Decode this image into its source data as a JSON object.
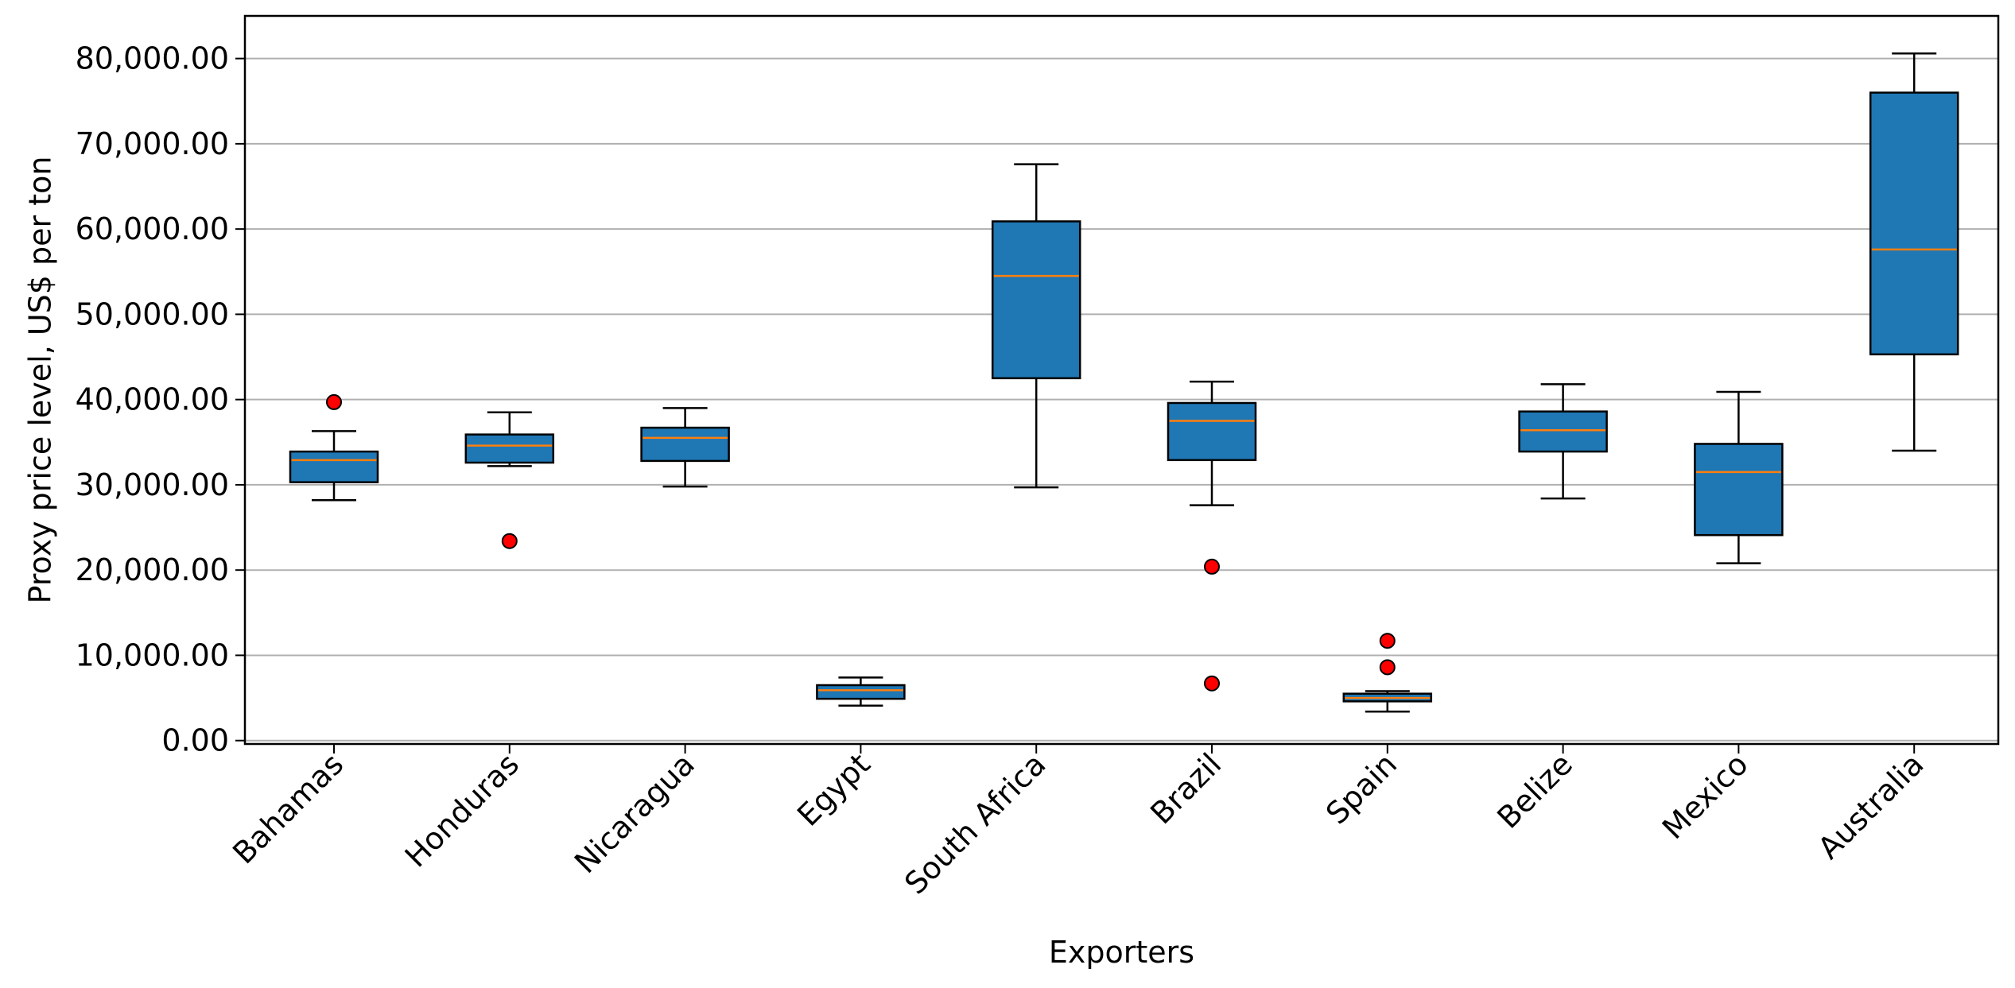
{
  "chart_data": {
    "type": "box",
    "title": "",
    "xlabel": "Exporters",
    "ylabel": "Proxy price level, US$ per ton",
    "ylim": [
      -400,
      85000
    ],
    "yticks": [
      0,
      10000,
      20000,
      30000,
      40000,
      50000,
      60000,
      70000,
      80000
    ],
    "ytick_labels": [
      "0.00",
      "10,000.00",
      "20,000.00",
      "30,000.00",
      "40,000.00",
      "50,000.00",
      "60,000.00",
      "70,000.00",
      "80,000.00"
    ],
    "grid": "y",
    "colors": {
      "box_fill": "#1f77b4",
      "median": "#ff7f0e",
      "outlier": "#ff0000"
    },
    "categories": [
      "Bahamas",
      "Honduras",
      "Nicaragua",
      "Egypt",
      "South Africa",
      "Brazil",
      "Spain",
      "Belize",
      "Mexico",
      "Australia"
    ],
    "boxes": [
      {
        "category": "Bahamas",
        "whisker_low": 28200,
        "q1": 30300,
        "median": 32900,
        "q3": 33900,
        "whisker_high": 36300,
        "outliers": [
          39700
        ]
      },
      {
        "category": "Honduras",
        "whisker_low": 32200,
        "q1": 32600,
        "median": 34600,
        "q3": 35900,
        "whisker_high": 38500,
        "outliers": [
          23400
        ]
      },
      {
        "category": "Nicaragua",
        "whisker_low": 29800,
        "q1": 32800,
        "median": 35500,
        "q3": 36700,
        "whisker_high": 39000,
        "outliers": []
      },
      {
        "category": "Egypt",
        "whisker_low": 4100,
        "q1": 4900,
        "median": 5900,
        "q3": 6500,
        "whisker_high": 7400,
        "outliers": []
      },
      {
        "category": "South Africa",
        "whisker_low": 29700,
        "q1": 42500,
        "median": 54500,
        "q3": 60900,
        "whisker_high": 67600,
        "outliers": []
      },
      {
        "category": "Brazil",
        "whisker_low": 27600,
        "q1": 32900,
        "median": 37500,
        "q3": 39600,
        "whisker_high": 42100,
        "outliers": [
          20400,
          6700
        ]
      },
      {
        "category": "Spain",
        "whisker_low": 3400,
        "q1": 4600,
        "median": 5000,
        "q3": 5500,
        "whisker_high": 5800,
        "outliers": [
          11700,
          8600
        ]
      },
      {
        "category": "Belize",
        "whisker_low": 28400,
        "q1": 33900,
        "median": 36400,
        "q3": 38600,
        "whisker_high": 41800,
        "outliers": []
      },
      {
        "category": "Mexico",
        "whisker_low": 20800,
        "q1": 24100,
        "median": 31500,
        "q3": 34800,
        "whisker_high": 40900,
        "outliers": []
      },
      {
        "category": "Australia",
        "whisker_low": 34000,
        "q1": 45300,
        "median": 57600,
        "q3": 76000,
        "whisker_high": 80600,
        "outliers": []
      }
    ]
  }
}
